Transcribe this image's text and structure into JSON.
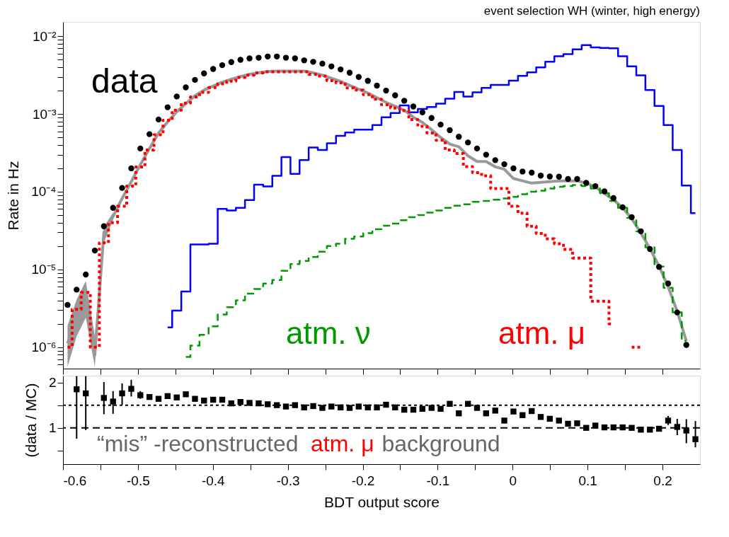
{
  "chart_data": [
    {
      "type": "step",
      "title": "event selection WH (winter, high energy)",
      "ylabel": "Rate in Hz",
      "log": "y",
      "grid": false,
      "tick_labels": "y",
      "xlim": [
        -0.6,
        0.25
      ],
      "xticks": [
        -0.6,
        {
          "value": -0.55,
          "label": null
        },
        -0.5,
        {
          "value": -0.45,
          "label": null
        },
        -0.4,
        {
          "value": -0.35,
          "label": null
        },
        -0.3,
        {
          "value": -0.25,
          "label": null
        },
        -0.2,
        {
          "value": -0.15,
          "label": null
        },
        -0.1,
        {
          "value": -0.05,
          "label": null
        },
        0,
        {
          "value": 0.05,
          "label": null
        },
        0.1,
        {
          "value": 0.15,
          "label": null
        },
        0.2
      ],
      "ylim": [
        5.3e-07,
        0.0153
      ],
      "yticks": [
        {
          "value": 6e-07,
          "label": null
        },
        {
          "value": 7e-07,
          "label": null
        },
        {
          "value": 8e-07,
          "label": null
        },
        {
          "value": 9e-07,
          "label": null
        },
        {
          "value": 1e-06,
          "label": "10⁻⁶"
        },
        {
          "value": 2e-06,
          "label": null
        },
        {
          "value": 3e-06,
          "label": null
        },
        {
          "value": 4e-06,
          "label": null
        },
        {
          "value": 5e-06,
          "label": null
        },
        {
          "value": 6e-06,
          "label": null
        },
        {
          "value": 7e-06,
          "label": null
        },
        {
          "value": 8e-06,
          "label": null
        },
        {
          "value": 9e-06,
          "label": null
        },
        {
          "value": 1e-05,
          "label": "10⁻⁵"
        },
        {
          "value": 2e-05,
          "label": null
        },
        {
          "value": 3e-05,
          "label": null
        },
        {
          "value": 4e-05,
          "label": null
        },
        {
          "value": 5e-05,
          "label": null
        },
        {
          "value": 6e-05,
          "label": null
        },
        {
          "value": 7e-05,
          "label": null
        },
        {
          "value": 8e-05,
          "label": null
        },
        {
          "value": 9e-05,
          "label": null
        },
        {
          "value": 0.0001,
          "label": "10⁻⁴"
        },
        {
          "value": 0.0002,
          "label": null
        },
        {
          "value": 0.0003,
          "label": null
        },
        {
          "value": 0.0004,
          "label": null
        },
        {
          "value": 0.0005,
          "label": null
        },
        {
          "value": 0.0006,
          "label": null
        },
        {
          "value": 0.0007,
          "label": null
        },
        {
          "value": 0.0008,
          "label": null
        },
        {
          "value": 0.0009,
          "label": null
        },
        {
          "value": 0.001,
          "label": "10⁻³"
        },
        {
          "value": 0.002,
          "label": null
        },
        {
          "value": 0.003,
          "label": null
        },
        {
          "value": 0.004,
          "label": null
        },
        {
          "value": 0.005,
          "label": null
        },
        {
          "value": 0.006,
          "label": null
        },
        {
          "value": 0.007,
          "label": null
        },
        {
          "value": 0.008,
          "label": null
        },
        {
          "value": 0.009,
          "label": null
        },
        {
          "value": 0.01,
          "label": "10⁻²"
        }
      ],
      "x": [
        -0.5939,
        -0.5818,
        -0.5696,
        -0.5575,
        -0.5454,
        -0.5332,
        -0.5211,
        -0.5089,
        -0.4968,
        -0.4846,
        -0.4725,
        -0.4604,
        -0.4482,
        -0.4361,
        -0.4239,
        -0.4118,
        -0.3996,
        -0.3875,
        -0.3754,
        -0.3632,
        -0.3511,
        -0.3389,
        -0.3268,
        -0.3146,
        -0.3025,
        -0.2904,
        -0.2782,
        -0.2661,
        -0.2539,
        -0.2418,
        -0.2296,
        -0.2175,
        -0.2054,
        -0.1932,
        -0.1811,
        -0.1689,
        -0.1568,
        -0.1446,
        -0.1325,
        -0.1204,
        -0.1082,
        -0.0961,
        -0.0839,
        -0.0718,
        -0.0596,
        -0.0475,
        -0.0354,
        -0.0232,
        -0.0111,
        0.0011,
        0.0132,
        0.0254,
        0.0375,
        0.0496,
        0.0618,
        0.0739,
        0.0861,
        0.0982,
        0.1104,
        0.1225,
        0.1346,
        0.1468,
        0.1589,
        0.1711,
        0.1832,
        0.1954,
        0.2075,
        0.2196,
        0.2318,
        0.2439
      ],
      "series": [
        {
          "name": "data",
          "type": "scatter",
          "marker": "circle",
          "color": "#000000",
          "values": [
            3.5e-06,
            5.5e-06,
            8.6e-06,
            1.75e-05,
            3.6e-05,
            6.2e-05,
            0.000112,
            0.0002,
            0.00036,
            0.00055,
            0.00085,
            0.00122,
            0.00168,
            0.0022,
            0.00275,
            0.00333,
            0.0038,
            0.00425,
            0.00466,
            0.00498,
            0.0052,
            0.0053,
            0.0055,
            0.0055,
            0.0053,
            0.0052,
            0.0049,
            0.0047,
            0.00445,
            0.0041,
            0.00375,
            0.0034,
            0.003,
            0.00267,
            0.00232,
            0.002,
            0.00174,
            0.00148,
            0.00125,
            0.00105,
            0.00089,
            0.00073,
            0.00062,
            0.00051,
            0.00043,
            0.00036,
            0.0003,
            0.000255,
            0.000226,
            0.0002,
            0.000182,
            0.000176,
            0.000161,
            0.000157,
            0.000156,
            0.000146,
            0.000146,
            0.00013,
            0.000118,
            0.000101,
            8.3e-05,
            6.3e-05,
            4.7e-05,
            3.1e-05,
            1.83e-05,
            1.08e-05,
            6.6e-06,
            2.8e-06,
            1.07e-06,
            null
          ]
        },
        {
          "type": "line",
          "line_style": "solid",
          "color": "#999999",
          "values": [
            1.12e-06,
            2.5e-06,
            4.5e-06,
            7.9e-07,
            3e-05,
            4.8e-05,
            8.2e-05,
            0.000135,
            0.000223,
            0.00036,
            0.00057,
            0.00079,
            0.00107,
            0.00136,
            0.00172,
            0.00203,
            0.00229,
            0.00257,
            0.0028,
            0.00303,
            0.00324,
            0.0034,
            0.00352,
            0.00356,
            0.00356,
            0.00356,
            0.00356,
            0.00339,
            0.00316,
            0.00288,
            0.00263,
            0.00234,
            0.00209,
            0.00186,
            0.00162,
            0.00141,
            0.00126,
            0.00112,
            0.00091,
            0.00078,
            0.00063,
            0.0005,
            0.00041,
            0.00038,
            0.00029,
            0.000245,
            0.000245,
            0.000209,
            0.000195,
            0.000148,
            0.000138,
            0.000129,
            0.000132,
            0.000135,
            0.000138,
            0.000138,
            0.000138,
            0.000129,
            0.000115,
            9.5e-05,
            7.9e-05,
            6.2e-05,
            4.5e-05,
            2.95e-05,
            1.86e-05,
            1.1e-05,
            6e-06,
            2.9e-06,
            1.2e-06,
            null
          ],
          "lower": [
            5.6e-07,
            1.38e-06,
            2.4e-06,
            5.6e-07,
            2.24e-05,
            4.3e-05,
            null,
            null,
            null,
            null,
            null,
            null,
            null,
            null,
            null,
            null,
            null,
            null,
            null,
            null,
            null,
            null,
            null,
            null,
            null,
            null,
            null,
            null,
            null,
            null,
            null,
            null,
            null,
            null,
            null,
            null,
            null,
            null,
            null,
            null,
            null,
            null,
            null,
            null,
            null,
            null,
            null,
            null,
            null,
            null,
            null,
            null,
            null,
            null,
            null,
            null,
            null,
            null,
            null,
            null,
            null,
            null,
            null,
            null,
            null,
            null,
            null,
            null,
            null,
            null
          ],
          "upper": [
            1.9e-06,
            4.1e-06,
            7.1e-06,
            1.38e-06,
            3.55e-05,
            5.4e-05,
            null,
            null,
            null,
            null,
            null,
            null,
            null,
            null,
            null,
            null,
            null,
            null,
            null,
            null,
            null,
            null,
            null,
            null,
            null,
            null,
            null,
            null,
            null,
            null,
            null,
            null,
            null,
            null,
            null,
            null,
            null,
            null,
            null,
            null,
            null,
            null,
            null,
            null,
            null,
            null,
            null,
            null,
            null,
            null,
            null,
            null,
            null,
            null,
            null,
            null,
            null,
            null,
            null,
            null,
            null,
            null,
            null,
            null,
            null,
            null,
            null,
            null,
            null,
            null
          ]
        },
        {
          "color": "#0000ff",
          "line_style": "solid",
          "values": [
            null,
            null,
            null,
            null,
            null,
            null,
            null,
            null,
            null,
            null,
            null,
            1.8e-06,
            2.96e-06,
            5.2e-06,
            2.1e-05,
            2.1e-05,
            2.14e-05,
            6e-05,
            5.75e-05,
            6.2e-05,
            7.8e-05,
            0.000123,
            0.000117,
            0.00016,
            0.00028,
            0.00017,
            0.000255,
            0.00037,
            0.000344,
            0.00042,
            0.000525,
            0.00058,
            0.00063,
            0.00063,
            0.00072,
            0.00091,
            0.00103,
            0.00129,
            0.00105,
            0.00116,
            0.00123,
            0.00136,
            0.00157,
            0.00192,
            0.00168,
            0.0019,
            0.00217,
            0.00237,
            0.00237,
            0.00269,
            0.0031,
            0.00343,
            0.00397,
            0.0047,
            0.00555,
            0.0059,
            0.0068,
            0.0077,
            0.0072,
            0.0071,
            0.007,
            0.00555,
            0.0041,
            0.00314,
            0.00203,
            0.00127,
            0.00072,
            0.000344,
            0.00012,
            5.3e-05
          ]
        },
        {
          "name": "atm. ν",
          "color": "#009900",
          "line_style": "dashed",
          "values": [
            null,
            null,
            null,
            null,
            null,
            null,
            null,
            null,
            null,
            null,
            null,
            null,
            null,
            7.5e-07,
            1.05e-06,
            1.44e-06,
            1.85e-06,
            2.63e-06,
            3.27e-06,
            4e-06,
            4.9e-06,
            5.6e-06,
            6.6e-06,
            7.3e-06,
            9.6e-06,
            1.17e-05,
            1.29e-05,
            1.45e-05,
            1.69e-05,
            2e-05,
            2.14e-05,
            2.48e-05,
            2.65e-05,
            2.93e-05,
            3.3e-05,
            3.65e-05,
            3.9e-05,
            4.3e-05,
            4.7e-05,
            5e-05,
            5.4e-05,
            5.75e-05,
            6.2e-05,
            6.6e-05,
            6.9e-05,
            7.4e-05,
            7.6e-05,
            7.9e-05,
            8.2e-05,
            8.6e-05,
            9.3e-05,
            0.0001,
            0.000103,
            0.00011,
            0.000116,
            0.000118,
            0.000122,
            0.000118,
            0.00011,
            9.6e-05,
            7.6e-05,
            6.2e-05,
            4.6e-05,
            3.1e-05,
            1.93e-05,
            1.09e-05,
            5.8e-06,
            2.8e-06,
            1.2e-06,
            null
          ]
        },
        {
          "name": "atm. μ",
          "color": "#ff0000",
          "line_style": "dotted",
          "values": [
            1e-06,
            3.06e-06,
            5.06e-06,
            1e-06,
            2.2e-05,
            4e-05,
            6.5e-05,
            0.000118,
            0.000208,
            0.000344,
            0.00054,
            0.00083,
            0.00112,
            0.00138,
            0.00166,
            0.0019,
            0.00219,
            0.00245,
            0.00265,
            0.00295,
            0.00316,
            0.00339,
            0.0035,
            0.0035,
            0.0035,
            0.0035,
            0.0035,
            0.00324,
            0.00308,
            0.00269,
            0.00252,
            0.00217,
            0.00203,
            0.00178,
            0.00155,
            0.00132,
            0.00119,
            0.00111,
            0.00085,
            0.000695,
            0.00057,
            0.00046,
            0.000344,
            0.00031,
            0.000211,
            0.000176,
            0.00016,
            0.00011,
            0.00011,
            6.5e-05,
            5.3e-05,
            3.6e-05,
            2.9e-05,
            2.48e-05,
            2.14e-05,
            1.81e-05,
            1.4e-05,
            1.4e-05,
            3.9e-06,
            3.9e-06,
            2e-06,
            null,
            1e-06,
            1e-06,
            null,
            null,
            null,
            null,
            null,
            null
          ]
        }
      ]
    },
    {
      "type": "scatter",
      "xlabel": "BDT output score",
      "ylabel": "(data / MC)",
      "grid": false,
      "xlim": [
        -0.6,
        0.25
      ],
      "xticks": [
        -0.6,
        {
          "value": -0.55,
          "label": null
        },
        -0.5,
        {
          "value": -0.45,
          "label": null
        },
        -0.4,
        {
          "value": -0.35,
          "label": null
        },
        -0.3,
        {
          "value": -0.25,
          "label": null
        },
        -0.2,
        {
          "value": -0.15,
          "label": null
        },
        -0.1,
        {
          "value": -0.05,
          "label": null
        },
        0,
        {
          "value": 0.05,
          "label": null
        },
        0.1,
        {
          "value": 0.15,
          "label": null
        },
        0.2
      ],
      "ylim": [
        0.2,
        2.15
      ],
      "yticks": [
        {
          "value": 0.5,
          "label": null
        },
        1,
        {
          "value": 1.5,
          "label": null
        },
        2
      ],
      "ref_lines": [
        {
          "axis": "y",
          "value": 1,
          "line_style": "dashed"
        },
        {
          "axis": "y",
          "value": 1.5,
          "line_style": "dotted"
        }
      ],
      "annotations": [
        "“mis” -reconstructed",
        "atm. μ",
        "background"
      ],
      "series": [
        {
          "color": "#000000",
          "marker": "square",
          "x": [
            -0.5818,
            -0.5696,
            -0.5454,
            -0.5332,
            -0.5211,
            -0.5089,
            -0.4968,
            -0.4846,
            -0.4725,
            -0.4604,
            -0.4482,
            -0.4361,
            -0.4239,
            -0.4118,
            -0.3996,
            -0.3875,
            -0.3754,
            -0.3632,
            -0.3511,
            -0.3389,
            -0.3268,
            -0.3146,
            -0.3025,
            -0.2904,
            -0.2782,
            -0.2661,
            -0.2539,
            -0.2418,
            -0.2296,
            -0.2175,
            -0.2054,
            -0.1932,
            -0.1811,
            -0.1689,
            -0.1568,
            -0.1446,
            -0.1325,
            -0.1204,
            -0.1082,
            -0.0961,
            -0.0839,
            -0.0718,
            -0.0596,
            -0.0475,
            -0.0354,
            -0.0232,
            -0.0111,
            0.0011,
            0.0132,
            0.0254,
            0.0375,
            0.0496,
            0.0618,
            0.0739,
            0.0861,
            0.0982,
            0.1104,
            0.1225,
            0.1346,
            0.1468,
            0.1589,
            0.1711,
            0.1832,
            0.1954,
            0.2075,
            0.2196,
            0.2318,
            0.2439
          ],
          "values": [
            1.85,
            1.76,
            1.66,
            1.58,
            1.76,
            1.86,
            1.72,
            1.68,
            1.64,
            1.7,
            1.67,
            1.74,
            1.64,
            1.6,
            1.62,
            1.62,
            1.54,
            1.57,
            1.55,
            1.54,
            1.52,
            1.5,
            1.47,
            1.5,
            1.45,
            1.48,
            1.44,
            1.47,
            1.45,
            1.44,
            1.47,
            1.45,
            1.45,
            1.51,
            1.45,
            1.4,
            1.4,
            1.42,
            1.44,
            1.42,
            1.53,
            1.32,
            1.53,
            1.44,
            1.32,
            1.38,
            1.16,
            1.36,
            1.28,
            1.37,
            1.24,
            1.2,
            1.16,
            1.09,
            1.1,
            1.0,
            1.05,
            1.01,
            1.01,
            1.01,
            1.0,
            0.96,
            0.96,
            0.98,
            1.16,
            1.02,
            0.94,
            0.75
          ],
          "errors": [
            [
              0.76,
              2.14
            ],
            [
              0.95,
              2.14
            ],
            [
              1.3,
              2.01
            ],
            [
              1.31,
              1.81
            ],
            [
              1.51,
              1.98
            ],
            [
              1.69,
              2.06
            ],
            [
              1.64,
              1.81
            ],
            null,
            null,
            null,
            null,
            null,
            null,
            null,
            null,
            null,
            null,
            null,
            null,
            null,
            null,
            null,
            null,
            null,
            null,
            null,
            null,
            null,
            null,
            null,
            null,
            null,
            null,
            null,
            null,
            null,
            null,
            null,
            null,
            null,
            null,
            null,
            null,
            null,
            null,
            null,
            null,
            null,
            null,
            null,
            null,
            null,
            null,
            null,
            null,
            null,
            null,
            null,
            null,
            null,
            null,
            null,
            null,
            null,
            [
              1.06,
              1.26
            ],
            [
              0.84,
              1.2
            ],
            [
              0.66,
              1.19
            ],
            [
              0.57,
              1.15
            ]
          ]
        }
      ]
    }
  ]
}
